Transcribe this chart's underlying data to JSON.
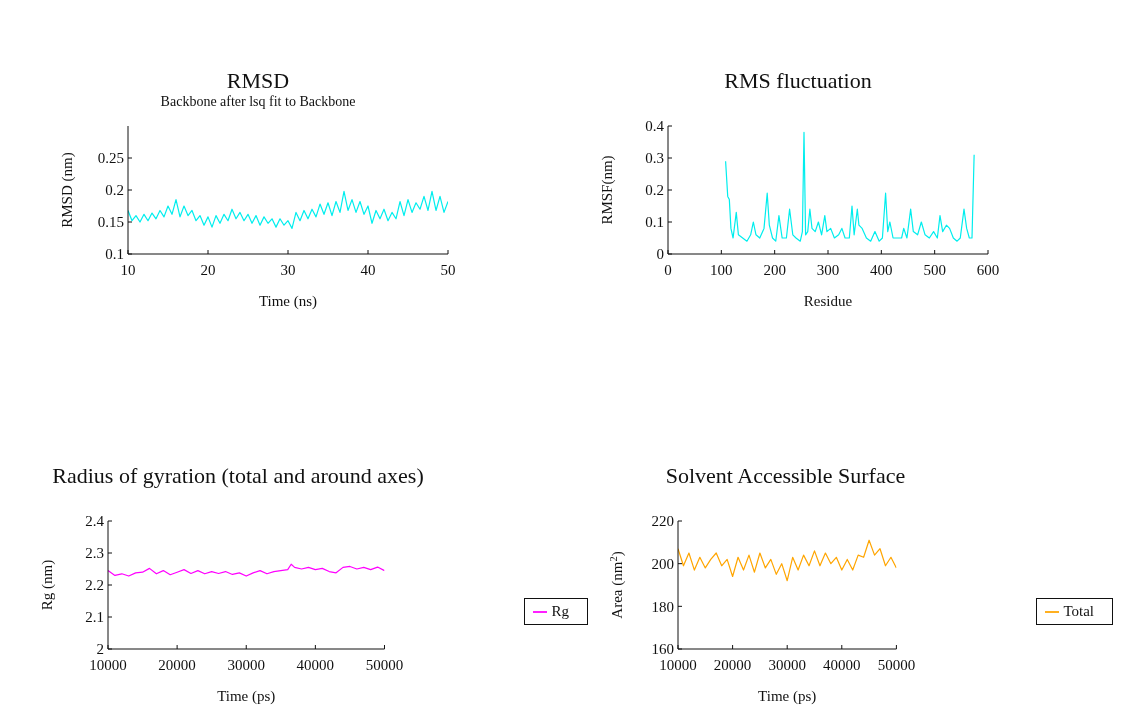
{
  "chart_data": [
    {
      "type": "line",
      "title": "RMSD",
      "subtitle": "Backbone after lsq fit to Backbone",
      "xlabel": "Time (ns)",
      "ylabel": "RMSD (nm)",
      "grid": false,
      "legend": false,
      "marker": "none",
      "xlim": [
        10,
        50
      ],
      "xticks": [
        10,
        20,
        30,
        40,
        50
      ],
      "ylim": [
        0.1,
        0.3
      ],
      "yticks": [
        0.1,
        0.15,
        0.2,
        0.25
      ],
      "series": [
        {
          "color": "#00eeee",
          "x": [
            10,
            10.5,
            11,
            11.5,
            12,
            12.5,
            13,
            13.5,
            14,
            14.5,
            15,
            15.5,
            16,
            16.5,
            17,
            17.5,
            18,
            18.5,
            19,
            19.5,
            20,
            20.5,
            21,
            21.5,
            22,
            22.5,
            23,
            23.5,
            24,
            24.5,
            25,
            25.5,
            26,
            26.5,
            27,
            27.5,
            28,
            28.5,
            29,
            29.5,
            30,
            30.5,
            31,
            31.5,
            32,
            32.5,
            33,
            33.5,
            34,
            34.5,
            35,
            35.5,
            36,
            36.5,
            37,
            37.5,
            38,
            38.5,
            39,
            39.5,
            40,
            40.5,
            41,
            41.5,
            42,
            42.5,
            43,
            43.5,
            44,
            44.5,
            45,
            45.5,
            46,
            46.5,
            47,
            47.5,
            48,
            48.5,
            49,
            49.5,
            50
          ],
          "values": [
            0.168,
            0.152,
            0.16,
            0.15,
            0.162,
            0.152,
            0.164,
            0.155,
            0.168,
            0.158,
            0.175,
            0.162,
            0.185,
            0.158,
            0.175,
            0.16,
            0.168,
            0.152,
            0.16,
            0.145,
            0.158,
            0.142,
            0.16,
            0.148,
            0.162,
            0.152,
            0.17,
            0.155,
            0.165,
            0.152,
            0.162,
            0.148,
            0.16,
            0.145,
            0.158,
            0.148,
            0.155,
            0.142,
            0.155,
            0.145,
            0.152,
            0.14,
            0.165,
            0.152,
            0.168,
            0.155,
            0.17,
            0.158,
            0.178,
            0.162,
            0.18,
            0.16,
            0.182,
            0.165,
            0.198,
            0.168,
            0.185,
            0.165,
            0.182,
            0.162,
            0.175,
            0.148,
            0.168,
            0.155,
            0.17,
            0.152,
            0.165,
            0.155,
            0.182,
            0.16,
            0.185,
            0.165,
            0.18,
            0.17,
            0.19,
            0.168,
            0.198,
            0.168,
            0.19,
            0.165,
            0.182
          ]
        }
      ]
    },
    {
      "type": "line",
      "title": "RMS fluctuation",
      "xlabel": "Residue",
      "ylabel": "RMSF(nm)",
      "grid": false,
      "legend": false,
      "marker": "none",
      "xlim": [
        0,
        600
      ],
      "xticks": [
        0,
        100,
        200,
        300,
        400,
        500,
        600
      ],
      "ylim": [
        0,
        0.4
      ],
      "yticks": [
        0,
        0.1,
        0.2,
        0.3,
        0.4
      ],
      "series": [
        {
          "color": "#00eeee",
          "x": [
            108,
            112,
            115,
            118,
            122,
            128,
            132,
            140,
            148,
            155,
            160,
            165,
            172,
            180,
            186,
            190,
            196,
            202,
            208,
            214,
            222,
            228,
            234,
            240,
            248,
            252,
            255,
            258,
            262,
            266,
            270,
            276,
            282,
            288,
            294,
            298,
            305,
            312,
            320,
            326,
            332,
            340,
            345,
            349,
            355,
            358,
            364,
            372,
            380,
            388,
            396,
            402,
            408,
            412,
            416,
            422,
            430,
            438,
            442,
            448,
            455,
            460,
            468,
            475,
            482,
            490,
            498,
            505,
            510,
            515,
            522,
            528,
            535,
            542,
            548,
            555,
            560,
            565,
            570,
            574
          ],
          "values": [
            0.29,
            0.18,
            0.17,
            0.08,
            0.05,
            0.13,
            0.06,
            0.05,
            0.04,
            0.06,
            0.1,
            0.06,
            0.05,
            0.08,
            0.19,
            0.09,
            0.05,
            0.04,
            0.12,
            0.05,
            0.05,
            0.14,
            0.06,
            0.05,
            0.04,
            0.07,
            0.38,
            0.06,
            0.07,
            0.14,
            0.08,
            0.07,
            0.1,
            0.06,
            0.12,
            0.07,
            0.08,
            0.05,
            0.06,
            0.08,
            0.05,
            0.05,
            0.15,
            0.06,
            0.14,
            0.09,
            0.08,
            0.05,
            0.04,
            0.07,
            0.04,
            0.05,
            0.19,
            0.07,
            0.1,
            0.05,
            0.05,
            0.05,
            0.08,
            0.05,
            0.14,
            0.07,
            0.06,
            0.1,
            0.06,
            0.05,
            0.07,
            0.05,
            0.12,
            0.07,
            0.09,
            0.08,
            0.05,
            0.04,
            0.05,
            0.14,
            0.08,
            0.05,
            0.05,
            0.31
          ]
        }
      ]
    },
    {
      "type": "line",
      "title": "Radius of gyration (total and around axes)",
      "xlabel": "Time (ps)",
      "ylabel": "Rg (nm)",
      "grid": false,
      "legend": "right",
      "marker": "none",
      "xlim": [
        10000,
        50000
      ],
      "xticks": [
        10000,
        20000,
        30000,
        40000,
        50000
      ],
      "ylim": [
        2,
        2.4
      ],
      "yticks": [
        2,
        2.1,
        2.2,
        2.3,
        2.4
      ],
      "series": [
        {
          "name": "Rg",
          "color": "#ff00ff",
          "x": [
            10000,
            11000,
            12000,
            13000,
            14000,
            15000,
            16000,
            17000,
            18000,
            19000,
            20000,
            21000,
            22000,
            23000,
            24000,
            25000,
            26000,
            27000,
            28000,
            29000,
            30000,
            31000,
            32000,
            33000,
            34000,
            35000,
            36000,
            36500,
            37000,
            38000,
            39000,
            40000,
            41000,
            42000,
            43000,
            44000,
            45000,
            46000,
            47000,
            48000,
            49000,
            50000
          ],
          "values": [
            2.245,
            2.23,
            2.235,
            2.228,
            2.238,
            2.24,
            2.252,
            2.235,
            2.245,
            2.232,
            2.24,
            2.248,
            2.236,
            2.245,
            2.235,
            2.242,
            2.236,
            2.242,
            2.233,
            2.238,
            2.228,
            2.238,
            2.245,
            2.235,
            2.242,
            2.245,
            2.248,
            2.265,
            2.255,
            2.25,
            2.255,
            2.248,
            2.252,
            2.242,
            2.238,
            2.255,
            2.258,
            2.25,
            2.255,
            2.248,
            2.256,
            2.245
          ]
        }
      ]
    },
    {
      "type": "line",
      "title": "Solvent Accessible Surface",
      "xlabel": "Time (ps)",
      "ylabel": "Area (nm$^{2}$)",
      "grid": false,
      "legend": "right",
      "marker": "none",
      "xlim": [
        10000,
        50000
      ],
      "xticks": [
        10000,
        20000,
        30000,
        40000,
        50000
      ],
      "ylim": [
        160,
        220
      ],
      "yticks": [
        160,
        180,
        200,
        220
      ],
      "series": [
        {
          "name": "Total",
          "color": "#ffa500",
          "x": [
            10000,
            11000,
            12000,
            13000,
            14000,
            15000,
            16000,
            17000,
            18000,
            19000,
            20000,
            21000,
            22000,
            23000,
            24000,
            25000,
            26000,
            27000,
            28000,
            29000,
            30000,
            31000,
            32000,
            33000,
            34000,
            35000,
            36000,
            37000,
            38000,
            39000,
            40000,
            41000,
            42000,
            43000,
            44000,
            45000,
            46000,
            47000,
            48000,
            49000,
            50000
          ],
          "values": [
            207,
            199,
            205,
            197,
            203,
            198,
            202,
            205,
            199,
            202,
            194,
            203,
            197,
            204,
            196,
            205,
            198,
            202,
            195,
            200,
            192,
            203,
            197,
            204,
            199,
            206,
            199,
            205,
            200,
            203,
            197,
            202,
            197,
            204,
            203,
            211,
            204,
            207,
            199,
            203,
            198
          ]
        }
      ]
    }
  ]
}
